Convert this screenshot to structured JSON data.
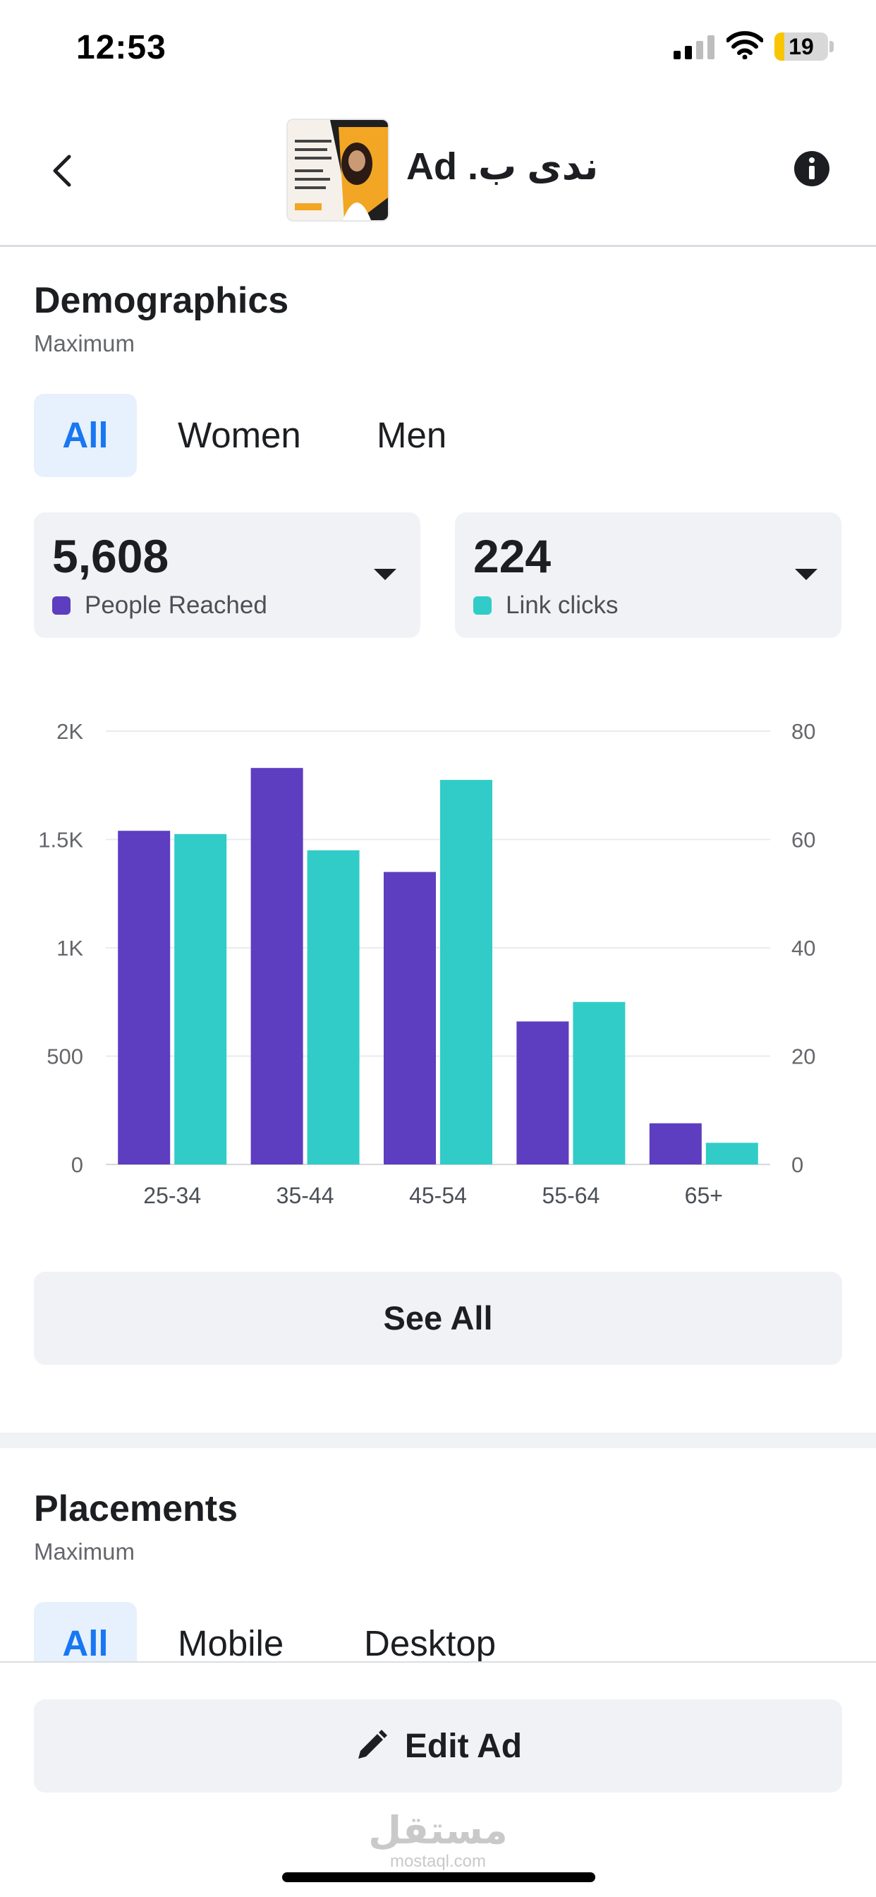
{
  "status": {
    "time": "12:53",
    "battery": "19",
    "battery_level": 0.19
  },
  "header": {
    "title": "ندى ب. Ad"
  },
  "demographics": {
    "title": "Demographics",
    "subtitle": "Maximum",
    "tabs": [
      "All",
      "Women",
      "Men"
    ],
    "active_tab": "All",
    "metrics": [
      {
        "value": "5,608",
        "label": "People Reached",
        "color": "#5d3dc0"
      },
      {
        "value": "224",
        "label": "Link clicks",
        "color": "#31ccc8"
      }
    ],
    "see_all_label": "See All"
  },
  "chart_data": {
    "type": "bar",
    "categories": [
      "25-34",
      "35-44",
      "45-54",
      "55-64",
      "65+"
    ],
    "series": [
      {
        "name": "People Reached",
        "axis": "left",
        "color": "#5d3dc0",
        "values": [
          1540,
          1830,
          1350,
          660,
          190
        ]
      },
      {
        "name": "Link clicks",
        "axis": "right",
        "color": "#31ccc8",
        "values": [
          61,
          58,
          71,
          30,
          4
        ]
      }
    ],
    "y_left": {
      "ylim": [
        0,
        2000
      ],
      "ticks": [
        0,
        500,
        1000,
        1500,
        2000
      ],
      "tick_labels": [
        "0",
        "500",
        "1K",
        "1.5K",
        "2K"
      ]
    },
    "y_right": {
      "ylim": [
        0,
        80
      ],
      "ticks": [
        0,
        20,
        40,
        60,
        80
      ],
      "tick_labels": [
        "0",
        "20",
        "40",
        "60",
        "80"
      ]
    },
    "grid": true,
    "legend": "none"
  },
  "placements": {
    "title": "Placements",
    "subtitle": "Maximum",
    "tabs": [
      "All",
      "Mobile",
      "Desktop"
    ],
    "active_tab": "All"
  },
  "bottom": {
    "edit_label": "Edit Ad",
    "watermark_ar": "مستقل",
    "watermark_en": "mostaql.com"
  },
  "icons": {
    "back": "chevron-left-icon",
    "info": "info-icon",
    "edit": "pencil-icon",
    "caret": "caret-down-icon"
  }
}
